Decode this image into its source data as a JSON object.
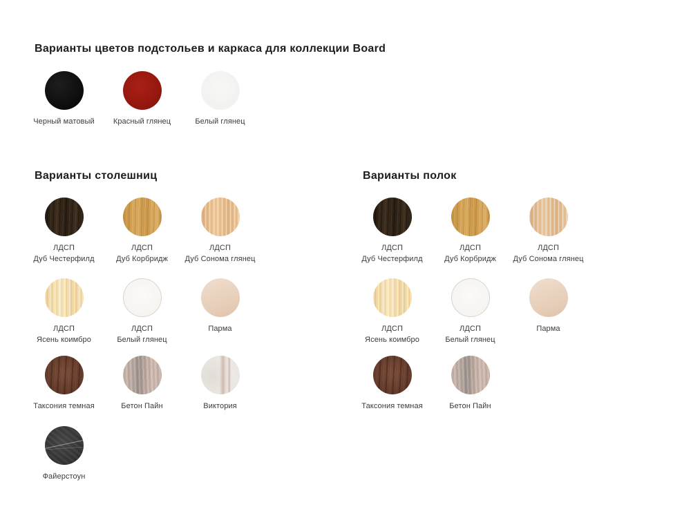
{
  "page": {
    "background": "#ffffff",
    "text_color": "#3b3b3b",
    "heading_color": "#1c1c1c"
  },
  "sections": {
    "frame": {
      "title": "Варианты цветов подстольев и каркаса для коллекции Board",
      "items": [
        {
          "id": "black-matte",
          "lines": [
            "Черный матовый"
          ],
          "color": "#131313",
          "texture": "solid-black"
        },
        {
          "id": "red-gloss",
          "lines": [
            "Красный глянец"
          ],
          "color": "#9d1b12",
          "texture": "solid-red"
        },
        {
          "id": "white-gloss",
          "lines": [
            "Белый глянец"
          ],
          "color": "#f4f4f3",
          "texture": "solid-white"
        }
      ]
    },
    "tabletops": {
      "title": "Варианты столешниц",
      "items": [
        {
          "id": "ldsp-dub-chesterfild",
          "lines": [
            "ЛДСП",
            "Дуб Честерфилд"
          ],
          "color": "#2f2318",
          "texture": "wood-dark"
        },
        {
          "id": "ldsp-dub-korbridzh",
          "lines": [
            "ЛДСП",
            "Дуб Корбридж"
          ],
          "color": "#d09c50",
          "texture": "wood-golden"
        },
        {
          "id": "ldsp-dub-sonoma",
          "lines": [
            "ЛДСП",
            "Дуб Сонома глянец"
          ],
          "color": "#e5bf93",
          "texture": "wood-light"
        },
        {
          "id": "ldsp-yasen-koimbro",
          "lines": [
            "ЛДСП",
            "Ясень коимбро"
          ],
          "color": "#f3dda9",
          "texture": "wood-cream"
        },
        {
          "id": "ldsp-belyi-glyanets",
          "lines": [
            "ЛДСП",
            "Белый глянец"
          ],
          "color": "#faf9f7",
          "texture": "gloss-white"
        },
        {
          "id": "parma",
          "lines": [
            "Парма"
          ],
          "color": "#e9d3bf",
          "texture": "plain-beige"
        },
        {
          "id": "taksoniya-temnaya",
          "lines": [
            "Таксония темная"
          ],
          "color": "#6b4232",
          "texture": "wood-red"
        },
        {
          "id": "beton-pain",
          "lines": [
            "Бетон Пайн"
          ],
          "color": "#c0ada3",
          "texture": "concrete"
        },
        {
          "id": "viktoriya",
          "lines": [
            "Виктория"
          ],
          "color": "#edebe7",
          "texture": "marble-white"
        },
        {
          "id": "fayerstoun",
          "lines": [
            "Файерстоун"
          ],
          "color": "#3a3a3a",
          "texture": "marble-black"
        }
      ]
    },
    "shelves": {
      "title": "Варианты полок",
      "items": [
        {
          "id": "ldsp-dub-chesterfild",
          "lines": [
            "ЛДСП",
            "Дуб Честерфилд"
          ],
          "color": "#2f2318",
          "texture": "wood-dark"
        },
        {
          "id": "ldsp-dub-korbridzh",
          "lines": [
            "ЛДСП",
            "Дуб Корбридж"
          ],
          "color": "#d09c50",
          "texture": "wood-golden"
        },
        {
          "id": "ldsp-dub-sonoma",
          "lines": [
            "ЛДСП",
            "Дуб Сонома глянец"
          ],
          "color": "#e5bf93",
          "texture": "wood-light"
        },
        {
          "id": "ldsp-yasen-koimbro",
          "lines": [
            "ЛДСП",
            "Ясень коимбро"
          ],
          "color": "#f3dda9",
          "texture": "wood-cream"
        },
        {
          "id": "ldsp-belyi-glyanets",
          "lines": [
            "ЛДСП",
            "Белый глянец"
          ],
          "color": "#faf9f7",
          "texture": "gloss-white"
        },
        {
          "id": "parma",
          "lines": [
            "Парма"
          ],
          "color": "#e9d3bf",
          "texture": "plain-beige"
        },
        {
          "id": "taksoniya-temnaya",
          "lines": [
            "Таксония темная"
          ],
          "color": "#6b4232",
          "texture": "wood-red"
        },
        {
          "id": "beton-pain",
          "lines": [
            "Бетон Пайн"
          ],
          "color": "#c0ada3",
          "texture": "concrete"
        }
      ]
    }
  }
}
